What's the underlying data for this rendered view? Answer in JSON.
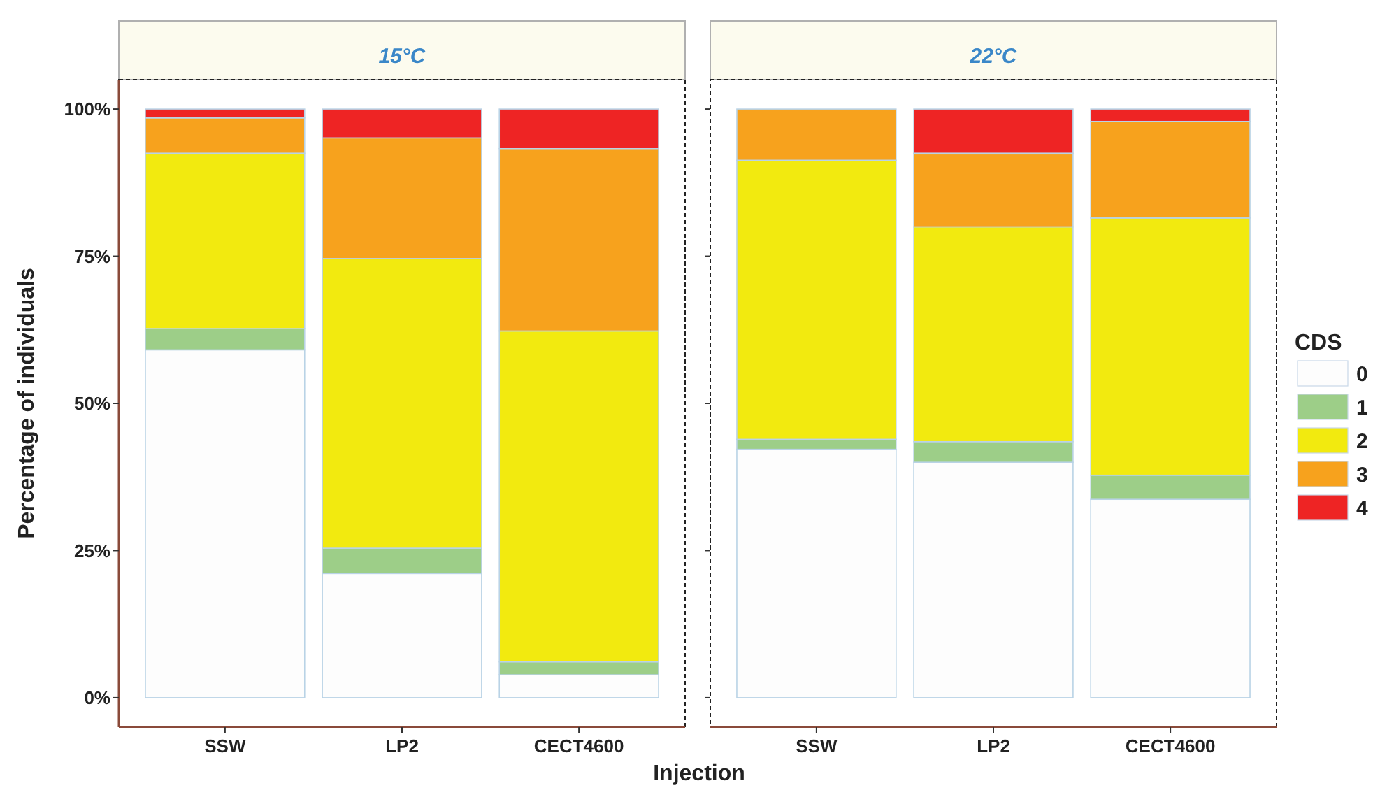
{
  "chart_data": [
    {
      "type": "bar",
      "title": "15°C",
      "xlabel": "Injection",
      "ylabel": "Percentage of individuals",
      "categories": [
        "SSW",
        "LP2",
        "CECT4600"
      ],
      "stacked": true,
      "ylim": [
        -5,
        105
      ],
      "yticks": [
        {
          "value": 0,
          "label": "0%"
        },
        {
          "value": 25,
          "label": "25%"
        },
        {
          "value": 50,
          "label": "50%"
        },
        {
          "value": 75,
          "label": "75%"
        },
        {
          "value": 100,
          "label": "100%"
        }
      ],
      "legend": false,
      "series": [
        {
          "color": "#fdfdfd",
          "values": [
            59.1,
            21.1,
            3.9
          ]
        },
        {
          "color": "#9dce88",
          "values": [
            3.6,
            4.3,
            2.2
          ]
        },
        {
          "color": "#f2ea0f",
          "values": [
            29.8,
            49.2,
            56.2
          ]
        },
        {
          "color": "#f7a21d",
          "values": [
            6.0,
            20.5,
            31.0
          ]
        },
        {
          "color": "#ee2424",
          "values": [
            1.5,
            4.9,
            6.7
          ]
        }
      ]
    },
    {
      "type": "bar",
      "title": "22°C",
      "categories": [
        "SSW",
        "LP2",
        "CECT4600"
      ],
      "stacked": true,
      "ylim": [
        -5,
        105
      ],
      "yticks": [
        {
          "value": 0,
          "label": null
        },
        {
          "value": 25,
          "label": null
        },
        {
          "value": 50,
          "label": null
        },
        {
          "value": 75,
          "label": null
        },
        {
          "value": 100,
          "label": null
        }
      ],
      "tick_labels": "x",
      "legend": "right",
      "legend_title": "CDS",
      "series": [
        {
          "name": "0",
          "color": "#fdfdfd",
          "values": [
            42.2,
            40.0,
            33.7
          ]
        },
        {
          "name": "1",
          "color": "#9dce88",
          "values": [
            1.7,
            3.5,
            4.1
          ]
        },
        {
          "name": "2",
          "color": "#f2ea0f",
          "values": [
            47.4,
            36.5,
            43.7
          ]
        },
        {
          "name": "3",
          "color": "#f7a21d",
          "values": [
            8.7,
            12.5,
            16.4
          ]
        },
        {
          "name": "4",
          "color": "#ee2424",
          "values": [
            0,
            7.5,
            2.1
          ]
        }
      ]
    }
  ]
}
